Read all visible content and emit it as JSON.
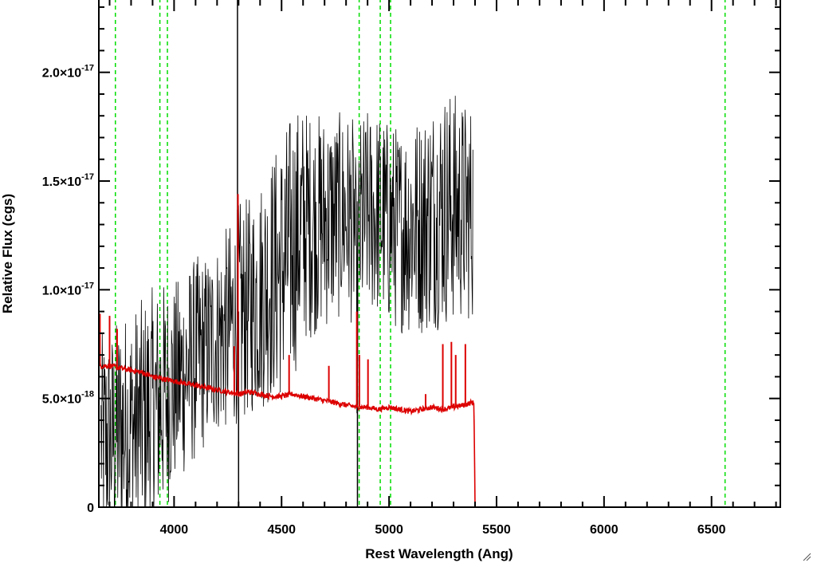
{
  "chart_data": {
    "type": "line",
    "title": "",
    "xlabel": "Rest Wavelength (Ang)",
    "ylabel": "Relative Flux (cgs)",
    "xlim": [
      3650,
      6820
    ],
    "ylim": [
      0,
      2.34e-17
    ],
    "x_ticks": [
      {
        "value": 4000,
        "label": "4000"
      },
      {
        "value": 4500,
        "label": "4500"
      },
      {
        "value": 5000,
        "label": "5000"
      },
      {
        "value": 5500,
        "label": "5500"
      },
      {
        "value": 6000,
        "label": "6000"
      },
      {
        "value": 6500,
        "label": "6500"
      }
    ],
    "y_ticks": [
      {
        "value": 0,
        "mantissa": "0",
        "exponent": ""
      },
      {
        "value": 5e-18,
        "mantissa": "5.0×10",
        "exponent": "-18"
      },
      {
        "value": 1e-17,
        "mantissa": "1.0×10",
        "exponent": "-17"
      },
      {
        "value": 1.5e-17,
        "mantissa": "1.5×10",
        "exponent": "-17"
      },
      {
        "value": 2e-17,
        "mantissa": "2.0×10",
        "exponent": "-17"
      }
    ],
    "grid": false,
    "reference_lines": {
      "color": "#00dd00",
      "style": "dashed",
      "x": [
        3727,
        3934,
        3969,
        4861,
        4959,
        5007,
        6563
      ]
    },
    "series": [
      {
        "color": "#000000",
        "x": [
          3660,
          3700,
          3750,
          3800,
          3850,
          3900,
          3950,
          4000,
          4050,
          4100,
          4150,
          4200,
          4250,
          4280,
          4300,
          4320,
          4350,
          4400,
          4450,
          4500,
          4550,
          4600,
          4650,
          4700,
          4750,
          4800,
          4840,
          4850,
          4860,
          4870,
          4900,
          4950,
          5000,
          5050,
          5100,
          5150,
          5200,
          5250,
          5300,
          5350,
          5390
        ],
        "y": [
          3.2e-18,
          3e-18,
          3.5e-18,
          3.6e-18,
          4e-18,
          4.4e-18,
          5e-18,
          5.6e-18,
          6.2e-18,
          6.8e-18,
          7.2e-18,
          7.8e-18,
          8.2e-18,
          8.5e-18,
          9e-18,
          9e-18,
          9.2e-18,
          9.8e-18,
          1.05e-17,
          1.1e-17,
          1.2e-17,
          1.3e-17,
          1.3e-17,
          1.32e-17,
          1.33e-17,
          1.35e-17,
          1.3e-17,
          9e-18,
          1.2e-17,
          1.3e-17,
          1.35e-17,
          1.35e-17,
          1.3e-17,
          1.28e-17,
          1.3e-17,
          1.3e-17,
          1.35e-17,
          1.38e-17,
          1.38e-17,
          1.36e-17,
          1.36e-17
        ],
        "scatter": [
          3e-18,
          3.2e-18,
          3.4e-18,
          3.5e-18,
          3.5e-18,
          3.6e-18,
          3.4e-18,
          3e-18,
          3e-18,
          3e-18,
          2.8e-18,
          2.8e-18,
          3e-18,
          3e-18,
          3.2e-18,
          3.2e-18,
          3.2e-18,
          3.4e-18,
          3.6e-18,
          3.8e-18,
          4e-18,
          3.5e-18,
          3.2e-18,
          3.2e-18,
          3e-18,
          3e-18,
          3e-18,
          3e-18,
          3.2e-18,
          3.2e-18,
          3e-18,
          3e-18,
          3e-18,
          3e-18,
          3.2e-18,
          3.2e-18,
          3.4e-18,
          3.5e-18,
          3.4e-18,
          3.2e-18,
          3.2e-18
        ],
        "spikes": [
          [
            4295,
            2.34e-17
          ],
          [
            4300,
            0
          ],
          [
            4853,
            0
          ]
        ]
      },
      {
        "color": "#dd0000",
        "x": [
          3650,
          3700,
          3750,
          3800,
          3850,
          3900,
          3950,
          4000,
          4050,
          4100,
          4150,
          4200,
          4250,
          4300,
          4350,
          4400,
          4450,
          4500,
          4550,
          4600,
          4650,
          4700,
          4750,
          4800,
          4850,
          4900,
          4950,
          5000,
          5050,
          5100,
          5150,
          5200,
          5250,
          5300,
          5350,
          5380,
          5395,
          5400,
          5500,
          6000,
          6500,
          6820
        ],
        "y": [
          6.5e-18,
          6.5e-18,
          6.4e-18,
          6.3e-18,
          6.2e-18,
          6e-18,
          5.9e-18,
          5.8e-18,
          5.7e-18,
          5.6e-18,
          5.5e-18,
          5.4e-18,
          5.3e-18,
          5.2e-18,
          5.3e-18,
          5.2e-18,
          5.1e-18,
          5.1e-18,
          5.2e-18,
          5.1e-18,
          5e-18,
          4.9e-18,
          4.8e-18,
          4.7e-18,
          4.6e-18,
          4.6e-18,
          4.5e-18,
          4.6e-18,
          4.5e-18,
          4.4e-18,
          4.5e-18,
          4.6e-18,
          4.5e-18,
          4.6e-18,
          4.7e-18,
          4.8e-18,
          4.8e-18,
          0,
          0,
          0,
          0,
          0
        ],
        "peaks": [
          [
            3655,
            8.9e-18
          ],
          [
            3700,
            8.8e-18
          ],
          [
            3735,
            8.2e-18
          ],
          [
            4297,
            1.44e-17
          ],
          [
            4280,
            7.4e-18
          ],
          [
            4535,
            7e-18
          ],
          [
            4720,
            6.5e-18
          ],
          [
            4850,
            9e-18
          ],
          [
            4862,
            7e-18
          ],
          [
            4902,
            6.8e-18
          ],
          [
            5170,
            5.2e-18
          ],
          [
            5250,
            7.5e-18
          ],
          [
            5290,
            7.6e-18
          ],
          [
            5310,
            7e-18
          ],
          [
            5355,
            7.5e-18
          ]
        ]
      }
    ]
  }
}
